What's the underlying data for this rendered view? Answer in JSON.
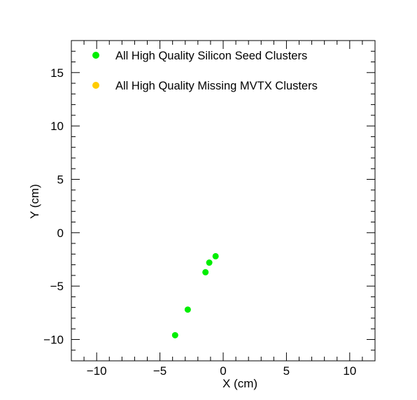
{
  "chart_data": {
    "type": "scatter",
    "title": "",
    "xlabel": "X (cm)",
    "ylabel": "Y (cm)",
    "xlim": [
      -12,
      12
    ],
    "ylim": [
      -12,
      18
    ],
    "x_ticks": [
      -10,
      -5,
      0,
      5,
      10
    ],
    "y_ticks": [
      -10,
      -5,
      0,
      5,
      10,
      15
    ],
    "x_tick_labels": [
      "−10",
      "−5",
      "0",
      "5",
      "10"
    ],
    "y_tick_labels": [
      "−10",
      "−5",
      "0",
      "5",
      "10",
      "15"
    ],
    "grid": false,
    "legend_position": "top-left",
    "series": [
      {
        "name": "All High Quality Silicon Seed Clusters",
        "color": "#00ee00",
        "marker": "circle",
        "points": [
          {
            "x": -0.6,
            "y": -2.2
          },
          {
            "x": -1.1,
            "y": -2.8
          },
          {
            "x": -1.4,
            "y": -3.7
          },
          {
            "x": -2.8,
            "y": -7.2
          },
          {
            "x": -3.8,
            "y": -9.6
          }
        ]
      },
      {
        "name": "All High Quality Missing MVTX Clusters",
        "color": "#ffcc00",
        "marker": "circle",
        "points": []
      }
    ]
  }
}
